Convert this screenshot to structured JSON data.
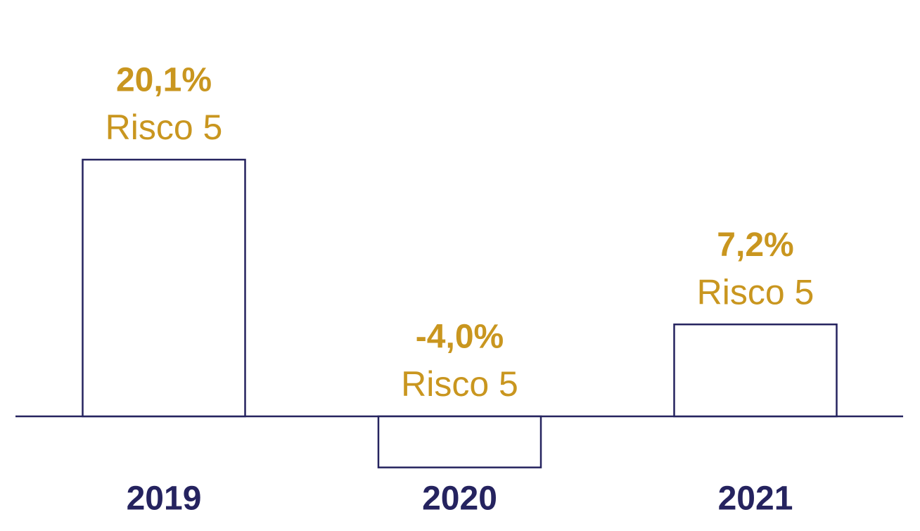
{
  "chart_data": {
    "type": "bar",
    "categories": [
      "2019",
      "2020",
      "2021"
    ],
    "values": [
      20.1,
      -4.0,
      7.2
    ],
    "value_labels": [
      "20,1%",
      "-4,0%",
      "7,2%"
    ],
    "sublabels": [
      "Risco 5",
      "Risco 5",
      "Risco 5"
    ],
    "color": "#25235f",
    "label_color": "#c9961f"
  }
}
